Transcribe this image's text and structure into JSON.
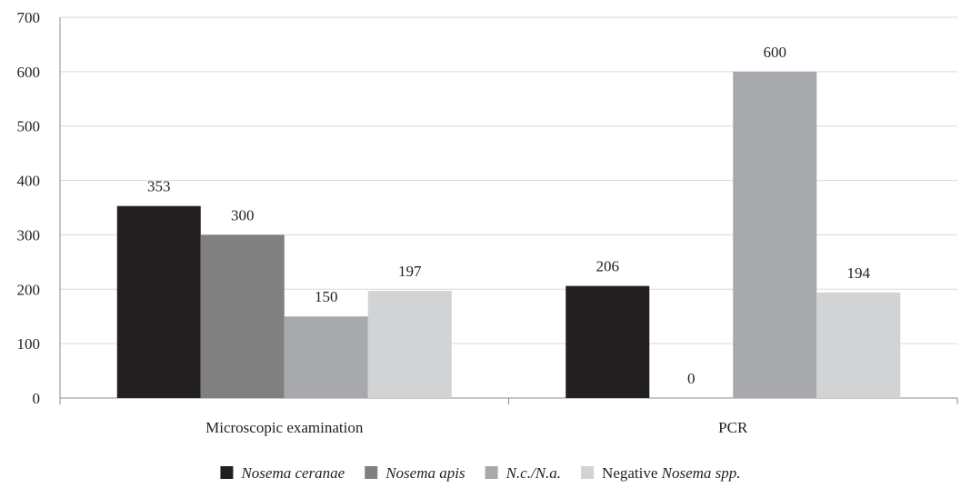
{
  "chart_data": {
    "type": "bar",
    "title": "",
    "xlabel": "",
    "ylabel": "",
    "ylim": [
      0,
      700
    ],
    "yticks": [
      0,
      100,
      200,
      300,
      400,
      500,
      600,
      700
    ],
    "grid": true,
    "legend_position": "bottom",
    "categories": [
      "Microscopic examination",
      "PCR"
    ],
    "series": [
      {
        "name_parts": [
          {
            "text": "Nosema ceranae",
            "italic": true
          }
        ],
        "color": "#231f20",
        "values": [
          353,
          206
        ]
      },
      {
        "name_parts": [
          {
            "text": "Nosema apis",
            "italic": true
          }
        ],
        "color": "#808080",
        "values": [
          300,
          0
        ]
      },
      {
        "name_parts": [
          {
            "text": "N.c./N.a.",
            "italic": true
          }
        ],
        "color": "#a7a9ac",
        "values": [
          150,
          600
        ]
      },
      {
        "name_parts": [
          {
            "text": "Negative ",
            "italic": false
          },
          {
            "text": "Nosema spp.",
            "italic": true
          }
        ],
        "color": "#d1d3d4",
        "values": [
          197,
          194
        ]
      }
    ]
  }
}
